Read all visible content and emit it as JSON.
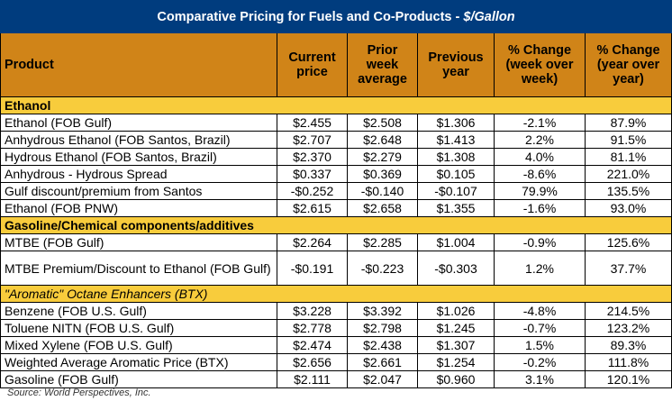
{
  "title": {
    "main": "Comparative Pricing for Fuels and Co-Products - ",
    "unit": "$/Gallon"
  },
  "colors": {
    "title_bg": "#003c7e",
    "header_bg": "#d08418",
    "section_bg": "#f8cc3c"
  },
  "headers": [
    "Product",
    "Current price",
    "Prior week average",
    "Previous year",
    "% Change (week over week)",
    "% Change (year over year)"
  ],
  "sections": [
    {
      "label": "Ethanol",
      "rows": [
        [
          "Ethanol (FOB Gulf)",
          "$2.455",
          "$2.508",
          "$1.306",
          "-2.1%",
          "87.9%"
        ],
        [
          "Anhydrous Ethanol (FOB Santos, Brazil)",
          "$2.707",
          "$2.648",
          "$1.413",
          "2.2%",
          "91.5%"
        ],
        [
          "Hydrous Ethanol (FOB Santos, Brazil)",
          "$2.370",
          "$2.279",
          "$1.308",
          "4.0%",
          "81.1%"
        ],
        [
          "Anhydrous - Hydrous Spread",
          "$0.337",
          "$0.369",
          "$0.105",
          "-8.6%",
          "221.0%"
        ],
        [
          "Gulf discount/premium from Santos",
          "-$0.252",
          "-$0.140",
          "-$0.107",
          "79.9%",
          "135.5%"
        ],
        [
          "Ethanol (FOB PNW)",
          "$2.615",
          "$2.658",
          "$1.355",
          "-1.6%",
          "93.0%"
        ]
      ]
    },
    {
      "label": "Gasoline/Chemical components/additives",
      "rows": [
        [
          "MTBE (FOB Gulf)",
          "$2.264",
          "$2.285",
          "$1.004",
          "-0.9%",
          "125.6%"
        ],
        [
          "MTBE Premium/Discount to Ethanol (FOB Gulf)",
          "-$0.191",
          "-$0.223",
          "-$0.303",
          "1.2%",
          "37.7%"
        ]
      ]
    },
    {
      "label": "\"Aromatic\" Octane Enhancers (BTX)",
      "rows": [
        [
          "Benzene (FOB U.S. Gulf)",
          "$3.228",
          "$3.392",
          "$1.026",
          "-4.8%",
          "214.5%"
        ],
        [
          "Toluene NITN (FOB U.S. Gulf)",
          "$2.778",
          "$2.798",
          "$1.245",
          "-0.7%",
          "123.2%"
        ],
        [
          "Mixed Xylene (FOB U.S. Gulf)",
          "$2.474",
          "$2.438",
          "$1.307",
          "1.5%",
          "89.3%"
        ],
        [
          "Weighted Average Aromatic Price (BTX)",
          "$2.656",
          "$2.661",
          "$1.254",
          "-0.2%",
          "111.8%"
        ],
        [
          "Gasoline (FOB Gulf)",
          "$2.111",
          "$2.047",
          "$0.960",
          "3.1%",
          "120.1%"
        ]
      ]
    }
  ],
  "source": "Source: World Perspectives, Inc."
}
